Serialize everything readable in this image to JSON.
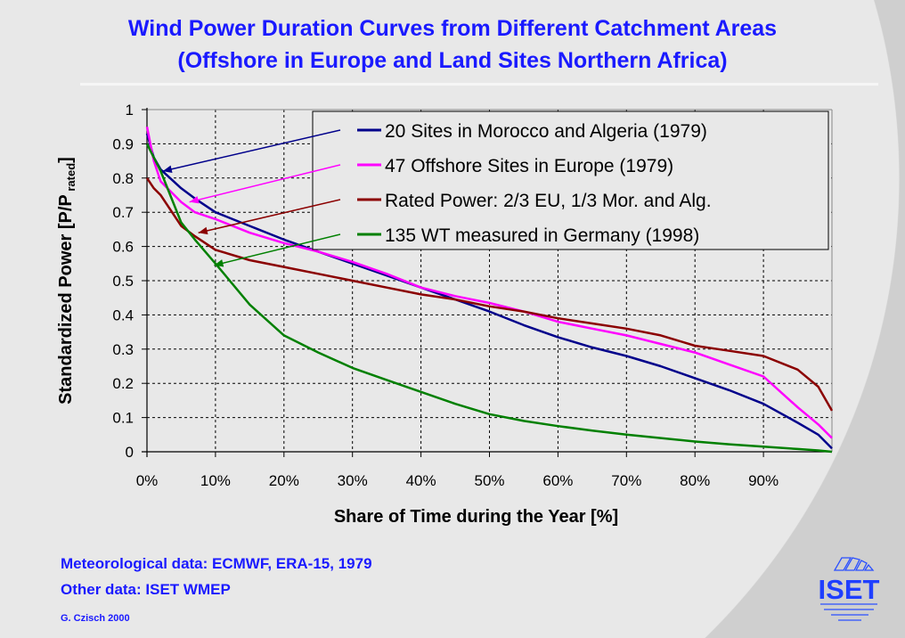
{
  "title_line1": "Wind Power Duration Curves from Different Catchment Areas",
  "title_line2": "(Offshore in Europe and Land Sites Northern Africa)",
  "footer": {
    "line1": "Meteorological data: ECMWF, ERA-15, 1979",
    "line2": "Other data: ISET WMEP",
    "author": "G. Czisch 2000"
  },
  "logo_text": "ISET",
  "chart_data": {
    "type": "line",
    "title": "Wind Power Duration Curves from Different Catchment Areas (Offshore in Europe and Land Sites Northern Africa)",
    "xlabel": "Share of Time during the Year [%]",
    "ylabel_main": "Standardized Power [P/P",
    "ylabel_sub": "rated",
    "ylabel_end": "]",
    "xlim": [
      0,
      100
    ],
    "ylim": [
      0,
      1
    ],
    "grid": true,
    "legend_placement": "top-right",
    "xticks": [
      "0%",
      "10%",
      "20%",
      "30%",
      "40%",
      "50%",
      "60%",
      "70%",
      "80%",
      "90%"
    ],
    "yticks": [
      "0",
      "0.1",
      "0.2",
      "0.3",
      "0.4",
      "0.5",
      "0.6",
      "0.7",
      "0.8",
      "0.9",
      "1"
    ],
    "x": [
      0,
      1,
      2,
      5,
      7,
      10,
      15,
      20,
      25,
      30,
      35,
      40,
      45,
      50,
      55,
      60,
      65,
      70,
      75,
      80,
      85,
      90,
      95,
      98,
      100
    ],
    "series": [
      {
        "name": "20 Sites in Morocco and Algeria (1979)",
        "color": "#00008b",
        "values": [
          0.93,
          0.86,
          0.825,
          0.77,
          0.74,
          0.7,
          0.66,
          0.62,
          0.585,
          0.55,
          0.515,
          0.48,
          0.445,
          0.41,
          0.37,
          0.335,
          0.305,
          0.28,
          0.25,
          0.215,
          0.18,
          0.14,
          0.085,
          0.05,
          0.01
        ]
      },
      {
        "name": "47 Offshore Sites in Europe (1979)",
        "color": "#ff00ff",
        "values": [
          0.95,
          0.85,
          0.79,
          0.73,
          0.7,
          0.68,
          0.64,
          0.61,
          0.585,
          0.555,
          0.52,
          0.48,
          0.455,
          0.435,
          0.41,
          0.38,
          0.36,
          0.34,
          0.315,
          0.29,
          0.255,
          0.22,
          0.13,
          0.08,
          0.04
        ]
      },
      {
        "name": "Rated Power: 2/3 EU, 1/3 Mor. and Alg.",
        "color": "#8b0000",
        "values": [
          0.8,
          0.77,
          0.75,
          0.66,
          0.63,
          0.59,
          0.56,
          0.54,
          0.52,
          0.5,
          0.48,
          0.46,
          0.445,
          0.425,
          0.41,
          0.39,
          0.375,
          0.36,
          0.34,
          0.31,
          0.295,
          0.28,
          0.24,
          0.19,
          0.12
        ]
      },
      {
        "name": "135 WT measured in Germany (1998)",
        "color": "#008000",
        "values": [
          0.9,
          0.86,
          0.82,
          0.67,
          0.62,
          0.55,
          0.43,
          0.34,
          0.29,
          0.245,
          0.21,
          0.175,
          0.14,
          0.11,
          0.09,
          0.075,
          0.062,
          0.05,
          0.04,
          0.03,
          0.022,
          0.015,
          0.008,
          0.004,
          0.0
        ]
      }
    ]
  }
}
